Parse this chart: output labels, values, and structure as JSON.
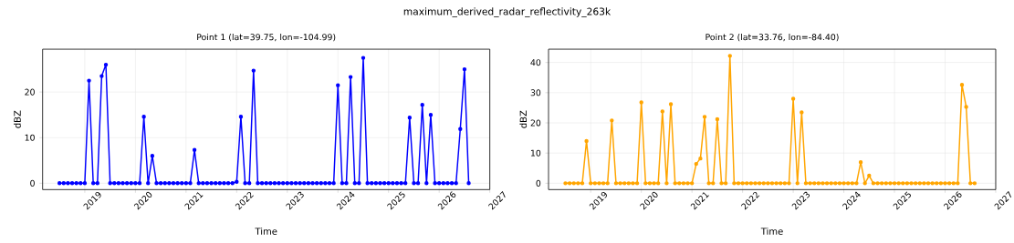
{
  "chart_data": [
    {
      "type": "line",
      "title": "Point 1 (lat=39.75, lon=-104.99)",
      "xlabel": "Time",
      "ylabel": "dBZ",
      "annotations": [
        "maximum_derived_radar_reflectivity_263k"
      ],
      "color": "#0000ff",
      "marker": "circle",
      "grid": true,
      "x": [
        "2018-07",
        "2018-08",
        "2018-09",
        "2018-10",
        "2018-11",
        "2018-12",
        "2019-01",
        "2019-02",
        "2019-03",
        "2019-04",
        "2019-05",
        "2019-06",
        "2019-07",
        "2019-08",
        "2019-09",
        "2019-10",
        "2019-11",
        "2019-12",
        "2020-01",
        "2020-02",
        "2020-03",
        "2020-04",
        "2020-05",
        "2020-06",
        "2020-07",
        "2020-08",
        "2020-09",
        "2020-10",
        "2020-11",
        "2020-12",
        "2021-01",
        "2021-02",
        "2021-03",
        "2021-04",
        "2021-05",
        "2021-06",
        "2021-07",
        "2021-08",
        "2021-09",
        "2021-10",
        "2021-11",
        "2021-12",
        "2022-01",
        "2022-02",
        "2022-03",
        "2022-04",
        "2022-05",
        "2022-06",
        "2022-07",
        "2022-08",
        "2022-09",
        "2022-10",
        "2022-11",
        "2022-12",
        "2023-01",
        "2023-02",
        "2023-03",
        "2023-04",
        "2023-05",
        "2023-06",
        "2023-07",
        "2023-08",
        "2023-09",
        "2023-10",
        "2023-11",
        "2023-12",
        "2024-01",
        "2024-02",
        "2024-03",
        "2024-04",
        "2024-05",
        "2024-06",
        "2024-07",
        "2024-08",
        "2024-09",
        "2024-10",
        "2024-11",
        "2024-12",
        "2025-01",
        "2025-02",
        "2025-03",
        "2025-04",
        "2025-05",
        "2025-06",
        "2025-07",
        "2025-08",
        "2025-09",
        "2025-10",
        "2025-11",
        "2025-12",
        "2026-01",
        "2026-02",
        "2026-03",
        "2026-04",
        "2026-05",
        "2026-06",
        "2026-07",
        "2026-08"
      ],
      "values": [
        0,
        0,
        0,
        0,
        0,
        0,
        0,
        22.5,
        0,
        0,
        23.5,
        26,
        0,
        0,
        0,
        0,
        0,
        0,
        0,
        0,
        14.6,
        0,
        6,
        0,
        0,
        0,
        0,
        0,
        0,
        0,
        0,
        0,
        7.3,
        0,
        0,
        0,
        0,
        0,
        0,
        0,
        0,
        0,
        0.3,
        14.6,
        0,
        0,
        24.7,
        0,
        0,
        0,
        0,
        0,
        0,
        0,
        0,
        0,
        0,
        0,
        0,
        0,
        0,
        0,
        0,
        0,
        0,
        0,
        21.5,
        0,
        0,
        23.3,
        0,
        0,
        27.5,
        0,
        0,
        0,
        0,
        0,
        0,
        0,
        0,
        0,
        0,
        14.4,
        0,
        0,
        17.2,
        0,
        15,
        0,
        0,
        0,
        0,
        0,
        0,
        11.9,
        25,
        0
      ],
      "xlim": [
        "2018-03",
        "2027-01"
      ],
      "xticks": [
        "2019",
        "2020",
        "2021",
        "2022",
        "2023",
        "2024",
        "2025",
        "2026",
        "2027"
      ],
      "ylim": [
        -1.4,
        29.4
      ],
      "yticks": [
        0,
        10,
        20
      ]
    },
    {
      "type": "line",
      "title": "Point 2 (lat=33.76, lon=-84.40)",
      "xlabel": "Time",
      "ylabel": "dBZ",
      "color": "#ffa500",
      "marker": "circle",
      "grid": true,
      "x": [
        "2018-07",
        "2018-08",
        "2018-09",
        "2018-10",
        "2018-11",
        "2018-12",
        "2019-01",
        "2019-02",
        "2019-03",
        "2019-04",
        "2019-05",
        "2019-06",
        "2019-07",
        "2019-08",
        "2019-09",
        "2019-10",
        "2019-11",
        "2019-12",
        "2020-01",
        "2020-02",
        "2020-03",
        "2020-04",
        "2020-05",
        "2020-06",
        "2020-07",
        "2020-08",
        "2020-09",
        "2020-10",
        "2020-11",
        "2020-12",
        "2021-01",
        "2021-02",
        "2021-03",
        "2021-04",
        "2021-05",
        "2021-06",
        "2021-07",
        "2021-08",
        "2021-09",
        "2021-10",
        "2021-11",
        "2021-12",
        "2022-01",
        "2022-02",
        "2022-03",
        "2022-04",
        "2022-05",
        "2022-06",
        "2022-07",
        "2022-08",
        "2022-09",
        "2022-10",
        "2022-11",
        "2022-12",
        "2023-01",
        "2023-02",
        "2023-03",
        "2023-04",
        "2023-05",
        "2023-06",
        "2023-07",
        "2023-08",
        "2023-09",
        "2023-10",
        "2023-11",
        "2023-12",
        "2024-01",
        "2024-02",
        "2024-03",
        "2024-04",
        "2024-05",
        "2024-06",
        "2024-07",
        "2024-08",
        "2024-09",
        "2024-10",
        "2024-11",
        "2024-12",
        "2025-01",
        "2025-02",
        "2025-03",
        "2025-04",
        "2025-05",
        "2025-06",
        "2025-07",
        "2025-08",
        "2025-09",
        "2025-10",
        "2025-11",
        "2025-12",
        "2026-01",
        "2026-02",
        "2026-03",
        "2026-04",
        "2026-05",
        "2026-06",
        "2026-07",
        "2026-08"
      ],
      "values": [
        0,
        0,
        0,
        0,
        0,
        14,
        0,
        0,
        0,
        0,
        0,
        20.8,
        0,
        0,
        0,
        0,
        0,
        0,
        26.8,
        0,
        0,
        0,
        0,
        23.8,
        0,
        26.2,
        0,
        0,
        0,
        0,
        0,
        6.4,
        8.2,
        22,
        0,
        0,
        21.2,
        0,
        0,
        42.2,
        0,
        0,
        0,
        0,
        0,
        0,
        0,
        0,
        0,
        0,
        0,
        0,
        0,
        0,
        28,
        0,
        23.5,
        0,
        0,
        0,
        0,
        0,
        0,
        0,
        0,
        0,
        0,
        0,
        0,
        0,
        7,
        0,
        2.5,
        0,
        0,
        0,
        0,
        0,
        0,
        0,
        0,
        0,
        0,
        0,
        0,
        0,
        0,
        0,
        0,
        0,
        0,
        0,
        0,
        0,
        32.6,
        25.3,
        0,
        0
      ],
      "xlim": [
        "2018-03",
        "2027-01"
      ],
      "xticks": [
        "2019",
        "2020",
        "2021",
        "2022",
        "2023",
        "2024",
        "2025",
        "2026",
        "2027"
      ],
      "ylim": [
        -2.1,
        44.4
      ],
      "yticks": [
        0,
        10,
        20,
        30,
        40
      ]
    }
  ]
}
